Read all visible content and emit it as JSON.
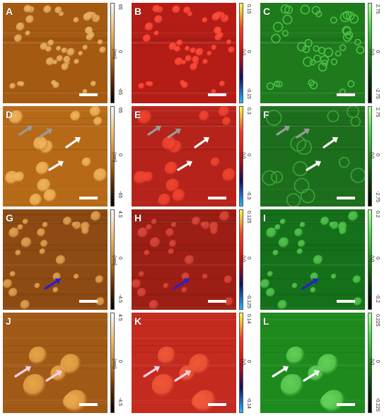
{
  "panels": [
    {
      "letter": "A",
      "channel": "topography",
      "cbar": {
        "top": "65",
        "mid": "0",
        "bottom": "-65",
        "unit": "(nm)"
      },
      "base": "#a55a12",
      "blob": "#e8b062",
      "grad": [
        "#ffffff",
        "#f3c27a",
        "#c97f25",
        "#6b3008",
        "#000000"
      ]
    },
    {
      "letter": "B",
      "channel": "red",
      "cbar": {
        "top": "0.15",
        "mid": "0",
        "bottom": "-0.15",
        "unit": "(V)"
      },
      "base": "#b31d16",
      "blob": "#ff4a38",
      "grad": [
        "#ffff40",
        "#ff3a20",
        "#d20d0d",
        "#101060",
        "#20b8ff"
      ]
    },
    {
      "letter": "C",
      "channel": "green",
      "cbar": {
        "top": "2.75",
        "mid": "0",
        "bottom": "-2.75",
        "unit": "(V)"
      },
      "base": "#1e7a1c",
      "blob": "#4cbf47",
      "grad": [
        "#a8ff9a",
        "#40d040",
        "#1a8a18",
        "#093a08",
        "#000000"
      ]
    },
    {
      "letter": "D",
      "channel": "topography",
      "cbar": {
        "top": "65",
        "mid": "0",
        "bottom": "-65",
        "unit": "(nm)"
      },
      "base": "#b66a18",
      "blob": "#f0b45a",
      "grad": [
        "#ffffff",
        "#f3c27a",
        "#c97f25",
        "#6b3008",
        "#000000"
      ],
      "arrows": [
        "gray",
        "gray",
        "white",
        "white"
      ]
    },
    {
      "letter": "E",
      "channel": "red",
      "cbar": {
        "top": "0.3",
        "mid": "0",
        "bottom": "-0.3",
        "unit": "(V)"
      },
      "base": "#b5231a",
      "blob": "#f04430",
      "grad": [
        "#ffff40",
        "#ff3a20",
        "#d20d0d",
        "#101060",
        "#20b8ff"
      ],
      "arrows": [
        "gray",
        "gray",
        "white",
        "white"
      ]
    },
    {
      "letter": "F",
      "channel": "green",
      "cbar": {
        "top": "2.75",
        "mid": "0",
        "bottom": "-2.75",
        "unit": "(V)"
      },
      "base": "#1d6e1c",
      "blob": "#3aa638",
      "grad": [
        "#a8ff9a",
        "#40d040",
        "#1a8a18",
        "#093a08",
        "#000000"
      ],
      "arrows": [
        "gray",
        "gray",
        "white",
        "white"
      ]
    },
    {
      "letter": "G",
      "channel": "topography",
      "cbar": {
        "top": "4.5",
        "mid": "0",
        "bottom": "-4.5",
        "unit": "(nm)"
      },
      "base": "#8d4a12",
      "blob": "#e0a050",
      "grad": [
        "#ffffff",
        "#f3c27a",
        "#c97f25",
        "#6b3008",
        "#000000"
      ],
      "arrows": [
        "blue"
      ]
    },
    {
      "letter": "H",
      "channel": "red",
      "cbar": {
        "top": "0.125",
        "mid": "0",
        "bottom": "-0.125",
        "unit": "(V)"
      },
      "base": "#9c1e14",
      "blob": "#d8463a",
      "grad": [
        "#ffff40",
        "#ff3a20",
        "#d20d0d",
        "#101060",
        "#20b8ff"
      ],
      "arrows": [
        "blue"
      ]
    },
    {
      "letter": "I",
      "channel": "green",
      "cbar": {
        "top": "0.2",
        "mid": "0",
        "bottom": "-0.2",
        "unit": "(V)"
      },
      "base": "#15701a",
      "blob": "#52c44c",
      "grad": [
        "#a8ff9a",
        "#40d040",
        "#1a8a18",
        "#093a08",
        "#000000"
      ],
      "arrows": [
        "blue"
      ]
    },
    {
      "letter": "J",
      "channel": "topography",
      "cbar": {
        "top": "4.5",
        "mid": "0",
        "bottom": "-4.5",
        "unit": "(nm)"
      },
      "base": "#a15a16",
      "blob": "#e8a64a",
      "grad": [
        "#ffffff",
        "#f3c27a",
        "#c97f25",
        "#6b3008",
        "#000000"
      ],
      "arrows": [
        "pink",
        "pink"
      ]
    },
    {
      "letter": "K",
      "channel": "red",
      "cbar": {
        "top": "0.14",
        "mid": "0",
        "bottom": "-0.14",
        "unit": "(V)"
      },
      "base": "#c42a1e",
      "blob": "#f05838",
      "grad": [
        "#ffff40",
        "#ff3a20",
        "#d20d0d",
        "#101060",
        "#20b8ff"
      ],
      "arrows": [
        "pink",
        "pink"
      ]
    },
    {
      "letter": "L",
      "channel": "green",
      "cbar": {
        "top": "0.225",
        "mid": "0",
        "bottom": "-0.225",
        "unit": "(V)"
      },
      "base": "#1e8a1e",
      "blob": "#62d058",
      "grad": [
        "#a8ff9a",
        "#40d040",
        "#1a8a18",
        "#093a08",
        "#000000"
      ],
      "arrows": [
        "white",
        "white"
      ]
    }
  ],
  "colors": {
    "gray": "#9a9a9a",
    "white": "#ffffff",
    "blue": "#2a1fd0",
    "pink": "#f4d0e6",
    "scalebar": "#ffffff"
  }
}
